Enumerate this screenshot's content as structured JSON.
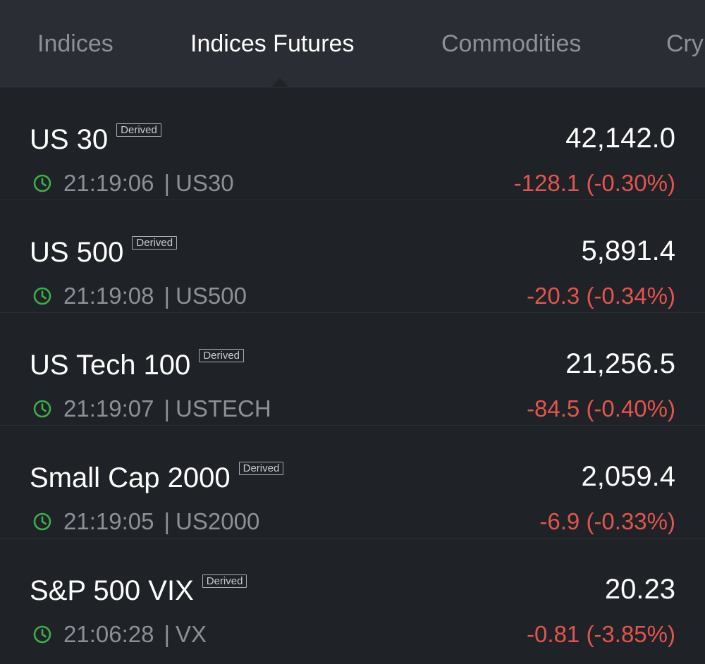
{
  "tabs": [
    {
      "label": "Indices",
      "active": false
    },
    {
      "label": "Indices Futures",
      "active": true
    },
    {
      "label": "Commodities",
      "active": false
    },
    {
      "label": "Cry",
      "active": false
    }
  ],
  "badge_label": "Derived",
  "colors": {
    "negative": "#e2554f",
    "clock": "#3fae49"
  },
  "instruments": [
    {
      "name": "US 30",
      "price": "42,142.0",
      "time": "21:19:06",
      "separator": "|",
      "symbol": "US30",
      "change": "-128.1 (-0.30%)"
    },
    {
      "name": "US 500",
      "price": "5,891.4",
      "time": "21:19:08",
      "separator": "|",
      "symbol": "US500",
      "change": "-20.3 (-0.34%)"
    },
    {
      "name": "US Tech 100",
      "price": "21,256.5",
      "time": "21:19:07",
      "separator": "|",
      "symbol": "USTECH",
      "change": "-84.5 (-0.40%)"
    },
    {
      "name": "Small Cap 2000",
      "price": "2,059.4",
      "time": "21:19:05",
      "separator": "|",
      "symbol": "US2000",
      "change": "-6.9 (-0.33%)"
    },
    {
      "name": "S&P 500 VIX",
      "price": "20.23",
      "time": "21:06:28",
      "separator": "|",
      "symbol": "VX",
      "change": "-0.81 (-3.85%)"
    }
  ]
}
